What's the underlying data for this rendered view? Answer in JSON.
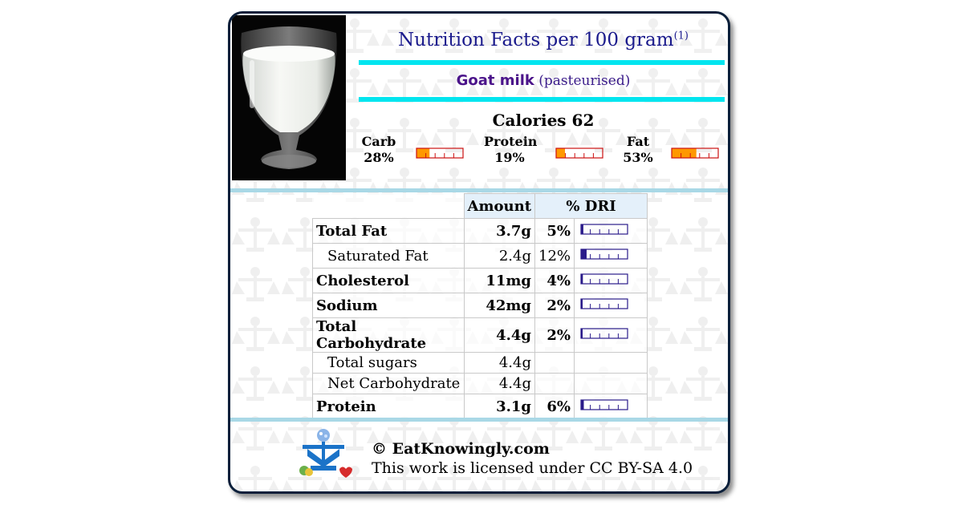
{
  "header": {
    "title": "Nutrition Facts per 100 gram",
    "title_note": "(1)",
    "food_name": "Goat milk",
    "food_variant": "(pasteurised)"
  },
  "calories": {
    "label": "Calories",
    "value": "62"
  },
  "macros": [
    {
      "label": "Carb",
      "pct": "28%",
      "fraction": 0.28
    },
    {
      "label": "Protein",
      "pct": "19%",
      "fraction": 0.19
    },
    {
      "label": "Fat",
      "pct": "53%",
      "fraction": 0.53
    }
  ],
  "table": {
    "headers": {
      "amount": "Amount",
      "dri": "% DRI"
    },
    "rows": [
      {
        "label": "Total Fat",
        "amount": "3.7g",
        "dri": "5%",
        "dri_fraction": 0.05,
        "bold": true
      },
      {
        "label": "Saturated Fat",
        "amount": "2.4g",
        "dri": "12%",
        "dri_fraction": 0.12,
        "bold": false
      },
      {
        "label": "Cholesterol",
        "amount": "11mg",
        "dri": "4%",
        "dri_fraction": 0.04,
        "bold": true
      },
      {
        "label": "Sodium",
        "amount": "42mg",
        "dri": "2%",
        "dri_fraction": 0.02,
        "bold": true
      },
      {
        "label": "Total Carbohydrate",
        "amount": "4.4g",
        "dri": "2%",
        "dri_fraction": 0.02,
        "bold": true
      },
      {
        "label": "Total sugars",
        "amount": "4.4g",
        "dri": "",
        "bold": false
      },
      {
        "label": "Net Carbohydrate",
        "amount": "4.4g",
        "dri": "",
        "bold": false
      },
      {
        "label": "Protein",
        "amount": "3.1g",
        "dri": "6%",
        "dri_fraction": 0.06,
        "bold": true
      }
    ]
  },
  "footer": {
    "copyright": "© EatKnowingly.com",
    "license": "This work is licensed under CC BY-SA 4.0"
  },
  "colors": {
    "accent_cyan": "#00e5ef",
    "title_blue": "#1a1a8c",
    "bar_orange": "#ff9800",
    "bar_red": "#cc1111",
    "dri_purple": "#2a1b8a",
    "separator": "#a9d8e6"
  }
}
